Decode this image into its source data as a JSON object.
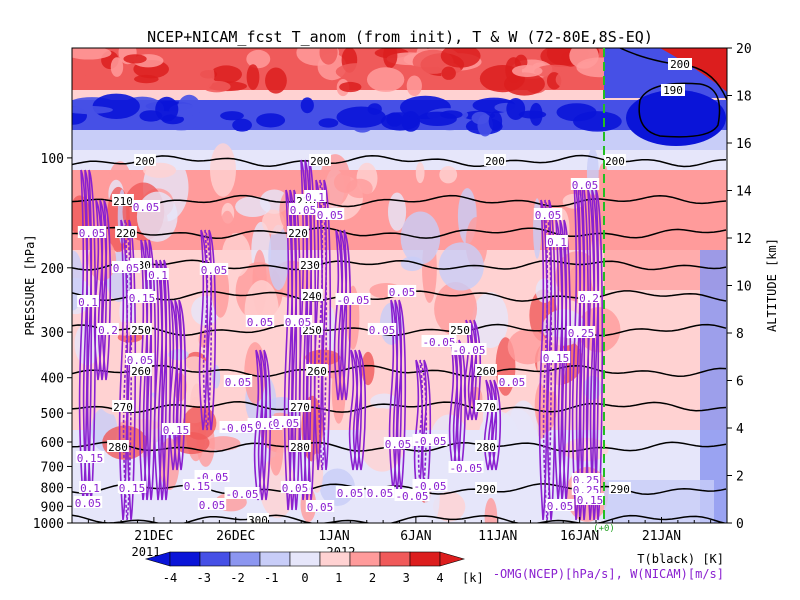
{
  "chart_data": {
    "type": "heatmap",
    "title": "NCEP+NICAM_fcst T_anom (from init), T & W  (72-80E,8S-EQ)",
    "ylabel_left": "PRESSURE [hPa]",
    "ylabel_right": "ALTITUDE [km]",
    "pressure_ticks": [
      1000,
      900,
      800,
      700,
      600,
      500,
      400,
      300,
      200,
      100
    ],
    "pressure_range": [
      1000,
      50
    ],
    "altitude_ticks": [
      0,
      2,
      4,
      6,
      8,
      10,
      12,
      14,
      16,
      18,
      20
    ],
    "x_ticks": [
      "21DEC",
      "26DEC",
      "1JAN",
      "6JAN",
      "11JAN",
      "16JAN",
      "21JAN"
    ],
    "year_labels": [
      "2011",
      "2012"
    ],
    "init_marker": "16JAN",
    "init_marker_label": "(+0)",
    "colorbar": {
      "ticks": [
        "-4",
        "-3",
        "-2",
        "-1",
        "0",
        "1",
        "2",
        "3",
        "4"
      ],
      "unit": "[k]",
      "colors": [
        "#0a14d8",
        "#4650e6",
        "#8c96f0",
        "#c8cdf8",
        "#e6e6fa",
        "#ffd2d2",
        "#ff9b9b",
        "#f05a5a",
        "#dc1e1e"
      ]
    },
    "legend_T": "T(black) [K]",
    "legend_W": "-OMG(NCEP)[hPa/s], W(NICAM)[m/s]",
    "T_contours": [
      {
        "value": 290,
        "labels": [
          "290",
          "290",
          "290",
          "290"
        ]
      },
      {
        "value": 280,
        "labels": [
          "280",
          "280",
          "280"
        ]
      },
      {
        "value": 270,
        "labels": [
          "270",
          "270",
          "270"
        ]
      },
      {
        "value": 260,
        "labels": [
          "260",
          "260",
          "260"
        ]
      },
      {
        "value": 250,
        "labels": [
          "250",
          "250",
          "250"
        ]
      },
      {
        "value": 240,
        "labels": [
          "240",
          "240"
        ]
      },
      {
        "value": 230,
        "labels": [
          "230",
          "230"
        ]
      },
      {
        "value": 220,
        "labels": [
          "220",
          "220"
        ]
      },
      {
        "value": 210,
        "labels": [
          "210",
          "210"
        ]
      },
      {
        "value": 200,
        "labels": [
          "200",
          "200",
          "200",
          "200"
        ]
      },
      {
        "value": 190,
        "labels": [
          "190"
        ]
      },
      {
        "value": 300,
        "labels": [
          "300"
        ]
      }
    ],
    "W_labels": [
      "0.05",
      "0.1",
      "0.15",
      "0.2",
      "0.25",
      "-0.05"
    ]
  }
}
